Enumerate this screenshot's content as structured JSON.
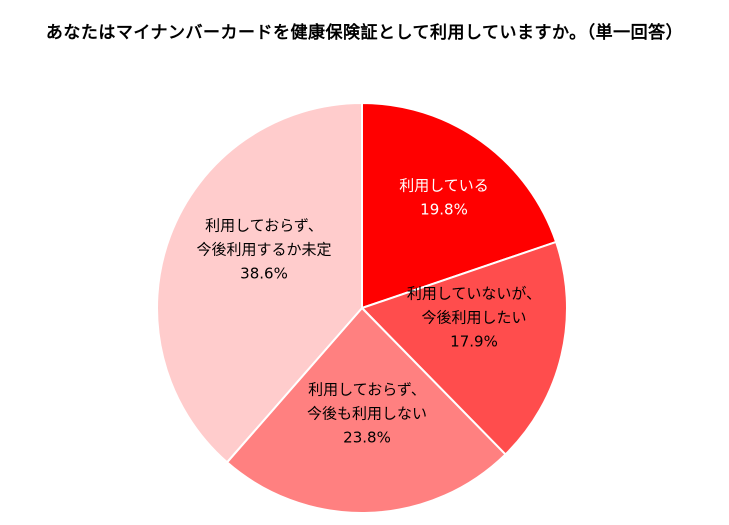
{
  "chart_data": {
    "type": "pie",
    "title": "あなたはマイナンバーカードを健康保険証として利用していますか。（単一回答）",
    "slices": [
      {
        "label_lines": [
          "利用している"
        ],
        "value": 19.8,
        "value_label": "19.8%",
        "color": "#ff0000",
        "text_color": "#ffffff"
      },
      {
        "label_lines": [
          "利用していないが、",
          "今後利用したい"
        ],
        "value": 17.9,
        "value_label": "17.9%",
        "color": "#ff4d4d",
        "text_color": "#000000"
      },
      {
        "label_lines": [
          "利用しておらず、",
          "今後も利用しない"
        ],
        "value": 23.8,
        "value_label": "23.8%",
        "color": "#ff8080",
        "text_color": "#000000"
      },
      {
        "label_lines": [
          "利用しておらず、",
          "今後利用するか未定"
        ],
        "value": 38.6,
        "value_label": "38.6%",
        "color": "#ffcccc",
        "text_color": "#000000"
      }
    ],
    "start_angle": "top",
    "direction": "clockwise",
    "legend": "none"
  }
}
